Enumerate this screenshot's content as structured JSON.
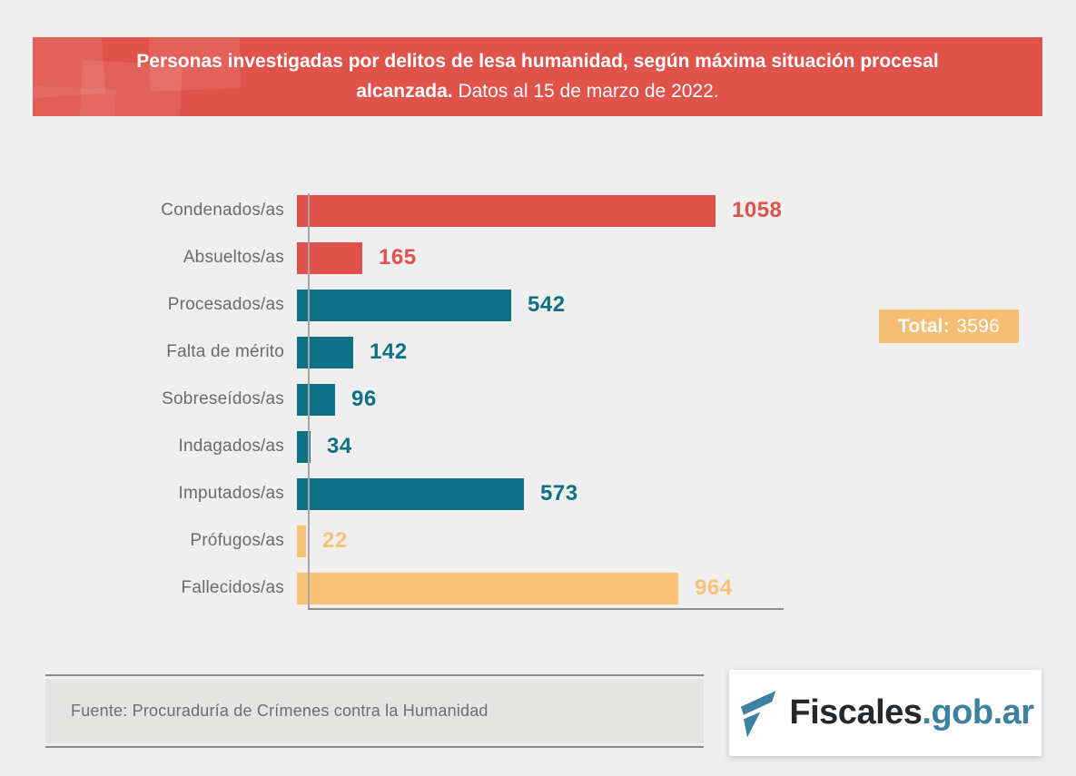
{
  "banner": {
    "title_bold": "Personas investigadas por delitos de lesa humanidad, según máxima situación procesal alcanzada.",
    "title_regular": " Datos al 15 de marzo de 2022.",
    "background": "#e0534b"
  },
  "chart_data": {
    "type": "bar",
    "orientation": "horizontal",
    "title": "Personas investigadas por delitos de lesa humanidad, según máxima situación procesal alcanzada. Datos al 15 de marzo de 2022.",
    "categories": [
      "Condenados/as",
      "Absueltos/as",
      "Procesados/as",
      "Falta de mérito",
      "Sobreseídos/as",
      "Indagados/as",
      "Imputados/as",
      "Prófugos/as",
      "Fallecidos/as"
    ],
    "values": [
      1058,
      165,
      542,
      142,
      96,
      34,
      573,
      22,
      964
    ],
    "colors": [
      "#e0514b",
      "#e0514b",
      "#0e7085",
      "#0e7085",
      "#0e7085",
      "#0e7085",
      "#0e7085",
      "#f9c377",
      "#f9c377"
    ],
    "value_labels": true,
    "grid": false,
    "legend": false,
    "xlim": [
      0,
      1100
    ],
    "total": 3596
  },
  "total_badge": {
    "label": "Total:",
    "value": "3596",
    "background": "#f6bd75"
  },
  "source": {
    "text": "Fuente: Procuraduría de Crímenes contra la Humanidad"
  },
  "logo": {
    "name": "Fiscales",
    "suffix": ".gob.ar",
    "icon": "fiscales-flag-icon",
    "accent": "#3c80a2"
  },
  "palette": {
    "background": "#f0efef",
    "red": "#e0514b",
    "teal": "#0e7085",
    "orange": "#f9c377",
    "axis": "#8f8f8f",
    "label_gray": "#6a6b6d"
  }
}
